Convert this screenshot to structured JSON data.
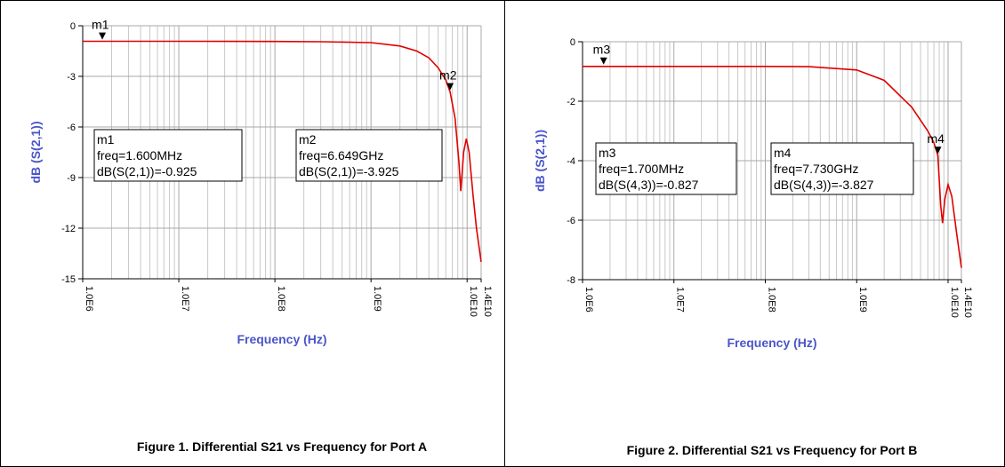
{
  "chart_data": [
    {
      "type": "line",
      "caption": "Figure 1. Differential S21 vs Frequency for Port A",
      "xlabel": "Frequency (Hz)",
      "ylabel": "dB (S(2,1))",
      "xscale": "log",
      "grid": true,
      "minor_grid": true,
      "xlim": [
        1000000,
        14000000000
      ],
      "ylim": [
        -15,
        0
      ],
      "xticks": [
        {
          "value": 1000000,
          "label": "1.0E6"
        },
        {
          "value": 10000000,
          "label": "1.0E7"
        },
        {
          "value": 100000000,
          "label": "1.0E8"
        },
        {
          "value": 1000000000,
          "label": "1.0E9"
        },
        {
          "value": 10000000000,
          "label": "1.0E10"
        },
        {
          "value": 14000000000,
          "label": "1.4E10"
        }
      ],
      "yticks": [
        0,
        -3,
        -6,
        -9,
        -12,
        -15
      ],
      "x": [
        1000000,
        10000000,
        100000000,
        300000000,
        1000000000,
        2000000000,
        3000000000,
        4000000000,
        5000000000,
        6000000000,
        6649000000,
        7500000000,
        8200000000,
        8600000000,
        9200000000,
        9800000000,
        10500000000,
        11500000000,
        12500000000,
        14000000000
      ],
      "series": [
        {
          "color": "#e00000",
          "values": [
            -0.92,
            -0.92,
            -0.93,
            -0.95,
            -1.0,
            -1.2,
            -1.5,
            -1.9,
            -2.5,
            -3.2,
            -3.925,
            -5.5,
            -8.0,
            -9.8,
            -7.5,
            -6.7,
            -7.5,
            -10,
            -12,
            -14
          ]
        }
      ],
      "markers": [
        {
          "name": "m1",
          "x": 1600000,
          "y": -0.925,
          "lines": [
            "freq=1.600MHz",
            "dB(S(2,1))=-0.925"
          ]
        },
        {
          "name": "m2",
          "x": 6649000000,
          "y": -3.925,
          "lines": [
            "freq=6.649GHz",
            "dB(S(2,1))=-3.925"
          ]
        }
      ]
    },
    {
      "type": "line",
      "caption": "Figure 2. Differential S21 vs Frequency for Port B",
      "xlabel": "Frequency (Hz)",
      "ylabel": "dB (S(2,1))",
      "xscale": "log",
      "grid": true,
      "minor_grid": true,
      "xlim": [
        1000000,
        14000000000
      ],
      "ylim": [
        -8,
        0
      ],
      "xticks": [
        {
          "value": 1000000,
          "label": "1.0E6"
        },
        {
          "value": 10000000,
          "label": "1.0E7"
        },
        {
          "value": 100000000,
          "label": "1.0E8"
        },
        {
          "value": 1000000000,
          "label": "1.0E9"
        },
        {
          "value": 10000000000,
          "label": "1.0E10"
        },
        {
          "value": 14000000000,
          "label": "1.4E10"
        }
      ],
      "yticks": [
        0,
        -2,
        -4,
        -6,
        -8
      ],
      "x": [
        1000000,
        10000000,
        100000000,
        300000000,
        1000000000,
        2000000000,
        4000000000,
        6000000000,
        7000000000,
        7730000000,
        8300000000,
        8700000000,
        9200000000,
        10000000000,
        11000000000,
        12500000000,
        14000000000
      ],
      "series": [
        {
          "color": "#e00000",
          "values": [
            -0.83,
            -0.83,
            -0.83,
            -0.84,
            -0.95,
            -1.3,
            -2.2,
            -3.0,
            -3.4,
            -3.827,
            -5.5,
            -6.1,
            -5.3,
            -4.8,
            -5.2,
            -6.5,
            -7.6
          ]
        }
      ],
      "markers": [
        {
          "name": "m3",
          "x": 1700000,
          "y": -0.827,
          "lines": [
            "freq=1.700MHz",
            "dB(S(4,3))=-0.827"
          ]
        },
        {
          "name": "m4",
          "x": 7730000000,
          "y": -3.827,
          "lines": [
            "freq=7.730GHz",
            "dB(S(4,3))=-3.827"
          ]
        }
      ]
    }
  ]
}
